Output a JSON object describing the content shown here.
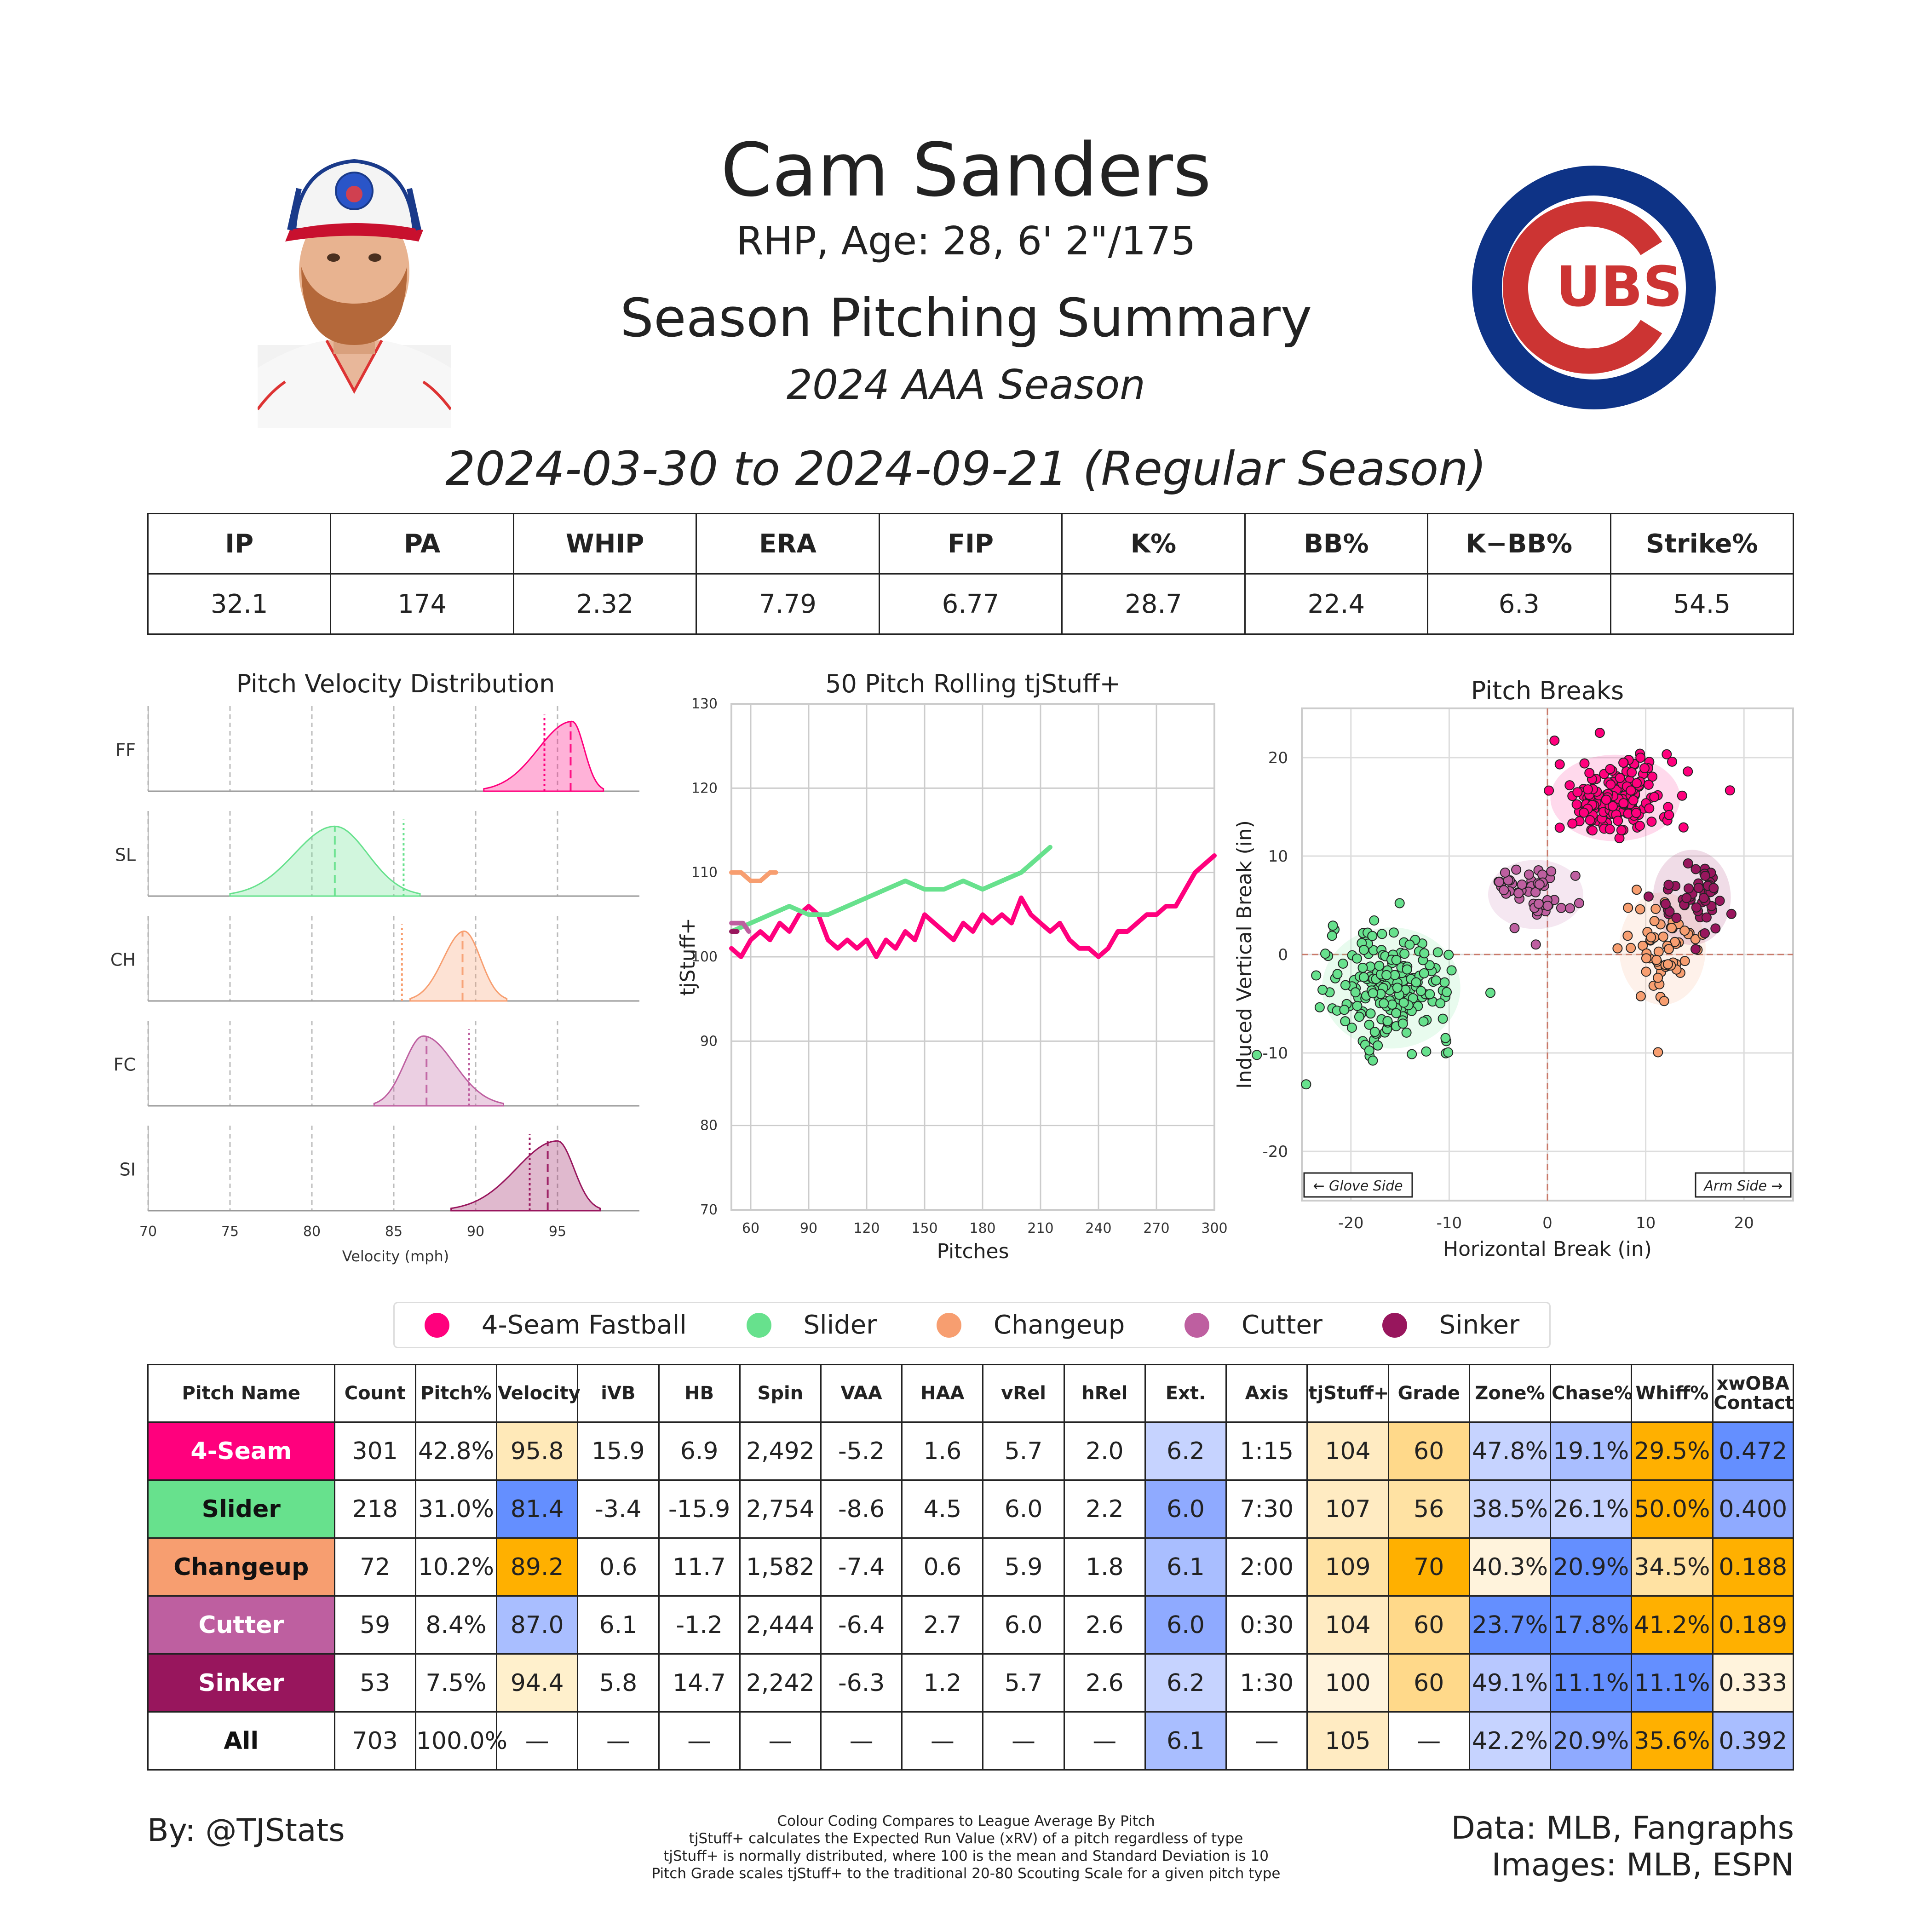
{
  "header": {
    "name": "Cam Sanders",
    "bio": "RHP, Age: 28, 6' 2\"/175",
    "summary_title": "Season Pitching Summary",
    "season_label": "2024 AAA Season",
    "date_range": "2024-03-30 to 2024-09-21 (Regular Season)",
    "team_logo_text": "UBS"
  },
  "colors": {
    "FF": "#FF007D",
    "SL": "#67E18D",
    "CH": "#F79E70",
    "FC": "#BE5FA0",
    "SI": "#98165D",
    "blue_strong": "#648FFF",
    "blue_light": "#B8C8FF",
    "orange_strong": "#FFB000",
    "orange_light": "#FFE9B8"
  },
  "stats": {
    "headers": [
      "IP",
      "PA",
      "WHIP",
      "ERA",
      "FIP",
      "K%",
      "BB%",
      "K−BB%",
      "Strike%"
    ],
    "values": [
      "32.1",
      "174",
      "2.32",
      "7.79",
      "6.77",
      "28.7",
      "22.4",
      "6.3",
      "54.5"
    ]
  },
  "chart_data": [
    {
      "type": "area",
      "title": "Pitch Velocity Distribution",
      "xlabel": "Velocity (mph)",
      "xlim": [
        70,
        100
      ],
      "x_ticks": [
        "70",
        "75",
        "80",
        "85",
        "90",
        "95"
      ],
      "rows": [
        {
          "label": "FF",
          "color_key": "FF",
          "min": 90.5,
          "max": 97.8,
          "peak": 95.9,
          "mean_line": 95.8,
          "league_line": 94.2
        },
        {
          "label": "SL",
          "color_key": "SL",
          "min": 75.0,
          "max": 86.6,
          "peak": 81.4,
          "mean_line": 81.4,
          "league_line": 85.6
        },
        {
          "label": "CH",
          "color_key": "CH",
          "min": 86.0,
          "max": 91.9,
          "peak": 89.3,
          "mean_line": 89.2,
          "league_line": 85.5
        },
        {
          "label": "FC",
          "color_key": "FC",
          "min": 83.8,
          "max": 91.7,
          "peak": 86.8,
          "mean_line": 87.0,
          "league_line": 89.6
        },
        {
          "label": "SI",
          "color_key": "SI",
          "min": 88.5,
          "max": 97.6,
          "peak": 95.0,
          "mean_line": 94.4,
          "league_line": 93.3
        }
      ]
    },
    {
      "type": "line",
      "title": "50 Pitch Rolling tjStuff+",
      "xlabel": "Pitches",
      "ylabel": "tjStuff+",
      "xlim": [
        50,
        300
      ],
      "ylim": [
        70,
        130
      ],
      "x_ticks": [
        "60",
        "90",
        "120",
        "150",
        "180",
        "210",
        "240",
        "270",
        "300"
      ],
      "y_ticks": [
        "70",
        "80",
        "90",
        "100",
        "110",
        "120",
        "130"
      ],
      "series": [
        {
          "color_key": "FF",
          "x": [
            50,
            55,
            60,
            65,
            70,
            75,
            80,
            85,
            90,
            95,
            100,
            105,
            110,
            115,
            120,
            125,
            130,
            135,
            140,
            145,
            150,
            155,
            160,
            165,
            170,
            175,
            180,
            185,
            190,
            195,
            200,
            205,
            210,
            215,
            220,
            225,
            230,
            235,
            240,
            245,
            250,
            255,
            260,
            265,
            270,
            275,
            280,
            285,
            290,
            295,
            300
          ],
          "y": [
            101,
            100,
            102,
            103,
            102,
            104,
            103,
            105,
            106,
            105,
            102,
            101,
            102,
            101,
            102,
            100,
            102,
            101,
            103,
            102,
            105,
            104,
            103,
            102,
            104,
            103,
            105,
            104,
            105,
            104,
            107,
            105,
            104,
            103,
            104,
            102,
            101,
            101,
            100,
            101,
            103,
            103,
            104,
            105,
            105,
            106,
            106,
            108,
            110,
            111,
            112
          ]
        },
        {
          "color_key": "SL",
          "x": [
            50,
            60,
            70,
            80,
            90,
            100,
            110,
            120,
            130,
            140,
            150,
            160,
            170,
            180,
            190,
            200,
            210,
            215
          ],
          "y": [
            103,
            104,
            105,
            106,
            105,
            105,
            106,
            107,
            108,
            109,
            108,
            108,
            109,
            108,
            109,
            110,
            112,
            113
          ]
        },
        {
          "color_key": "CH",
          "x": [
            50,
            55,
            60,
            65,
            70,
            73
          ],
          "y": [
            110,
            110,
            109,
            109,
            110,
            110
          ]
        },
        {
          "color_key": "FC",
          "x": [
            50,
            53,
            56,
            59
          ],
          "y": [
            104,
            104,
            104,
            103
          ]
        },
        {
          "color_key": "SI",
          "x": [
            50,
            53
          ],
          "y": [
            103,
            103
          ]
        }
      ]
    },
    {
      "type": "scatter",
      "title": "Pitch Breaks",
      "xlabel": "Horizontal Break (in)",
      "ylabel": "Induced Vertical Break (in)",
      "xlim": [
        -25,
        25
      ],
      "ylim": [
        -25,
        25
      ],
      "x_ticks": [
        "-20",
        "-10",
        "0",
        "10",
        "20"
      ],
      "y_ticks": [
        "-20",
        "-10",
        "0",
        "10",
        "20"
      ],
      "glove_side_label": "← Glove Side",
      "arm_side_label": "Arm Side →",
      "clusters": [
        {
          "color_key": "FF",
          "n": 170,
          "cx": 6.9,
          "cy": 15.9,
          "sx": 3.0,
          "sy": 2.0
        },
        {
          "color_key": "SL",
          "n": 200,
          "cx": -15.9,
          "cy": -3.4,
          "sx": 3.2,
          "sy": 2.8
        },
        {
          "color_key": "CH",
          "n": 60,
          "cx": 11.7,
          "cy": 0.6,
          "sx": 2.0,
          "sy": 2.6
        },
        {
          "color_key": "FC",
          "n": 50,
          "cx": -1.2,
          "cy": 6.1,
          "sx": 2.2,
          "sy": 1.6
        },
        {
          "color_key": "SI",
          "n": 50,
          "cx": 14.7,
          "cy": 5.8,
          "sx": 1.8,
          "sy": 2.2
        }
      ]
    }
  ],
  "legend": [
    {
      "label": "4-Seam Fastball",
      "color_key": "FF"
    },
    {
      "label": "Slider",
      "color_key": "SL"
    },
    {
      "label": "Changeup",
      "color_key": "CH"
    },
    {
      "label": "Cutter",
      "color_key": "FC"
    },
    {
      "label": "Sinker",
      "color_key": "SI"
    }
  ],
  "pitch_table": {
    "headers": [
      "Pitch Name",
      "Count",
      "Pitch%",
      "Velocity",
      "iVB",
      "HB",
      "Spin",
      "VAA",
      "HAA",
      "vRel",
      "hRel",
      "Ext.",
      "Axis",
      "tjStuff+",
      "Grade",
      "Zone%",
      "Chase%",
      "Whiff%",
      "xwOBA Contact"
    ],
    "rows": [
      {
        "name": "4-Seam",
        "bg": "#FF007D",
        "fg": "#ffffff",
        "cells": [
          "301",
          "42.8%",
          "95.8",
          "15.9",
          "6.9",
          "2,492",
          "-5.2",
          "1.6",
          "5.7",
          "2.0",
          "6.2",
          "1:15",
          "104",
          "60",
          "47.8%",
          "19.1%",
          "29.5%",
          "0.472"
        ],
        "shades": [
          "",
          "",
          "#FFE9B8",
          "",
          "",
          "",
          "",
          "",
          "",
          "",
          "#C6D3FF",
          "",
          "#FFEBC2",
          "#FFD98A",
          "#C6D3FF",
          "#A9BEFF",
          "#FFB000",
          "#648FFF"
        ]
      },
      {
        "name": "Slider",
        "bg": "#67E18D",
        "fg": "#111111",
        "cells": [
          "218",
          "31.0%",
          "81.4",
          "-3.4",
          "-15.9",
          "2,754",
          "-8.6",
          "4.5",
          "6.0",
          "2.2",
          "6.0",
          "7:30",
          "107",
          "56",
          "38.5%",
          "26.1%",
          "50.0%",
          "0.400"
        ],
        "shades": [
          "",
          "",
          "#648FFF",
          "",
          "",
          "",
          "",
          "",
          "",
          "",
          "#8FAAFF",
          "",
          "#FFEBC2",
          "#FFE2A3",
          "#C6D3FF",
          "#C6D3FF",
          "#FFB000",
          "#8FAAFF"
        ]
      },
      {
        "name": "Changeup",
        "bg": "#F79E70",
        "fg": "#111111",
        "cells": [
          "72",
          "10.2%",
          "89.2",
          "0.6",
          "11.7",
          "1,582",
          "-7.4",
          "0.6",
          "5.9",
          "1.8",
          "6.1",
          "2:00",
          "109",
          "70",
          "40.3%",
          "20.9%",
          "34.5%",
          "0.188"
        ],
        "shades": [
          "",
          "",
          "#FFB000",
          "",
          "",
          "",
          "",
          "",
          "",
          "",
          "#A9BEFF",
          "",
          "#FFE2A3",
          "#FFB000",
          "#FFF3DC",
          "#648FFF",
          "#FFE2A3",
          "#FFB000"
        ]
      },
      {
        "name": "Cutter",
        "bg": "#BE5FA0",
        "fg": "#ffffff",
        "cells": [
          "59",
          "8.4%",
          "87.0",
          "6.1",
          "-1.2",
          "2,444",
          "-6.4",
          "2.7",
          "6.0",
          "2.6",
          "6.0",
          "0:30",
          "104",
          "60",
          "23.7%",
          "17.8%",
          "41.2%",
          "0.189"
        ],
        "shades": [
          "",
          "",
          "#A9BEFF",
          "",
          "",
          "",
          "",
          "",
          "",
          "",
          "#8FAAFF",
          "",
          "#FFEBC2",
          "#FFD98A",
          "#648FFF",
          "#648FFF",
          "#FFB000",
          "#FFB000"
        ]
      },
      {
        "name": "Sinker",
        "bg": "#98165D",
        "fg": "#ffffff",
        "cells": [
          "53",
          "7.5%",
          "94.4",
          "5.8",
          "14.7",
          "2,242",
          "-6.3",
          "1.2",
          "5.7",
          "2.6",
          "6.2",
          "1:30",
          "100",
          "60",
          "49.1%",
          "11.1%",
          "11.1%",
          "0.333"
        ],
        "shades": [
          "",
          "",
          "#FFF0CC",
          "",
          "",
          "",
          "",
          "",
          "",
          "",
          "#C6D3FF",
          "",
          "#FFF3DC",
          "#FFD98A",
          "#B8C8FF",
          "#648FFF",
          "#648FFF",
          "#FFF3DC"
        ]
      },
      {
        "name": "All",
        "bg": "#ffffff",
        "fg": "#111111",
        "cells": [
          "703",
          "100.0%",
          "—",
          "—",
          "—",
          "—",
          "—",
          "—",
          "—",
          "—",
          "6.1",
          "—",
          "105",
          "—",
          "42.2%",
          "20.9%",
          "35.6%",
          "0.392"
        ],
        "shades": [
          "",
          "",
          "",
          "",
          "",
          "",
          "",
          "",
          "",
          "",
          "#A9BEFF",
          "",
          "#FFEBC2",
          "",
          "#C6D3FF",
          "#8FAAFF",
          "#FFB000",
          "#A9BEFF"
        ]
      }
    ]
  },
  "footer": {
    "by": "By: @TJStats",
    "notes": [
      "Colour Coding Compares to League Average By Pitch",
      "tjStuff+ calculates the Expected Run Value (xRV) of a pitch regardless of type",
      "tjStuff+ is normally distributed, where 100 is the mean and Standard Deviation is 10",
      "Pitch Grade scales tjStuff+ to the traditional 20-80 Scouting Scale for a given pitch type"
    ],
    "data_credit": "Data: MLB, Fangraphs",
    "image_credit": "Images: MLB, ESPN"
  }
}
